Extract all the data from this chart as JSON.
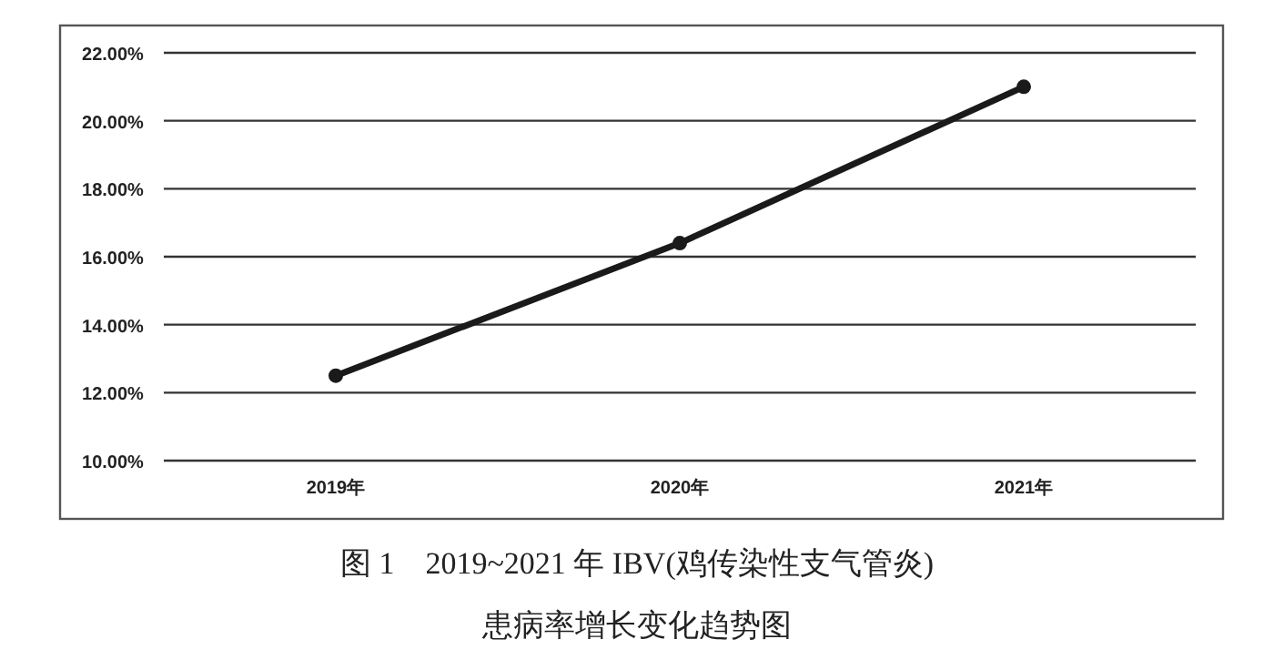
{
  "chart_data": {
    "type": "line",
    "title": "图 1　2019~2021 年 IBV(鸡传染性支气管炎)",
    "subtitle": "患病率增长变化趋势图",
    "categories": [
      "2019年",
      "2020年",
      "2021年"
    ],
    "series": [
      {
        "color": "#1a1a1a",
        "values": [
          12.5,
          16.4,
          21.0
        ]
      }
    ],
    "ylim": [
      10,
      22
    ],
    "yticks": [
      {
        "value": 10,
        "label": "10.00%"
      },
      {
        "value": 12,
        "label": "12.00%"
      },
      {
        "value": 14,
        "label": "14.00%"
      },
      {
        "value": 16,
        "label": "16.00%"
      },
      {
        "value": 18,
        "label": "18.00%"
      },
      {
        "value": 20,
        "label": "20.00%"
      },
      {
        "value": 22,
        "label": "22.00%"
      }
    ],
    "grid": "y",
    "marker": "circle",
    "line_style": "solid"
  }
}
